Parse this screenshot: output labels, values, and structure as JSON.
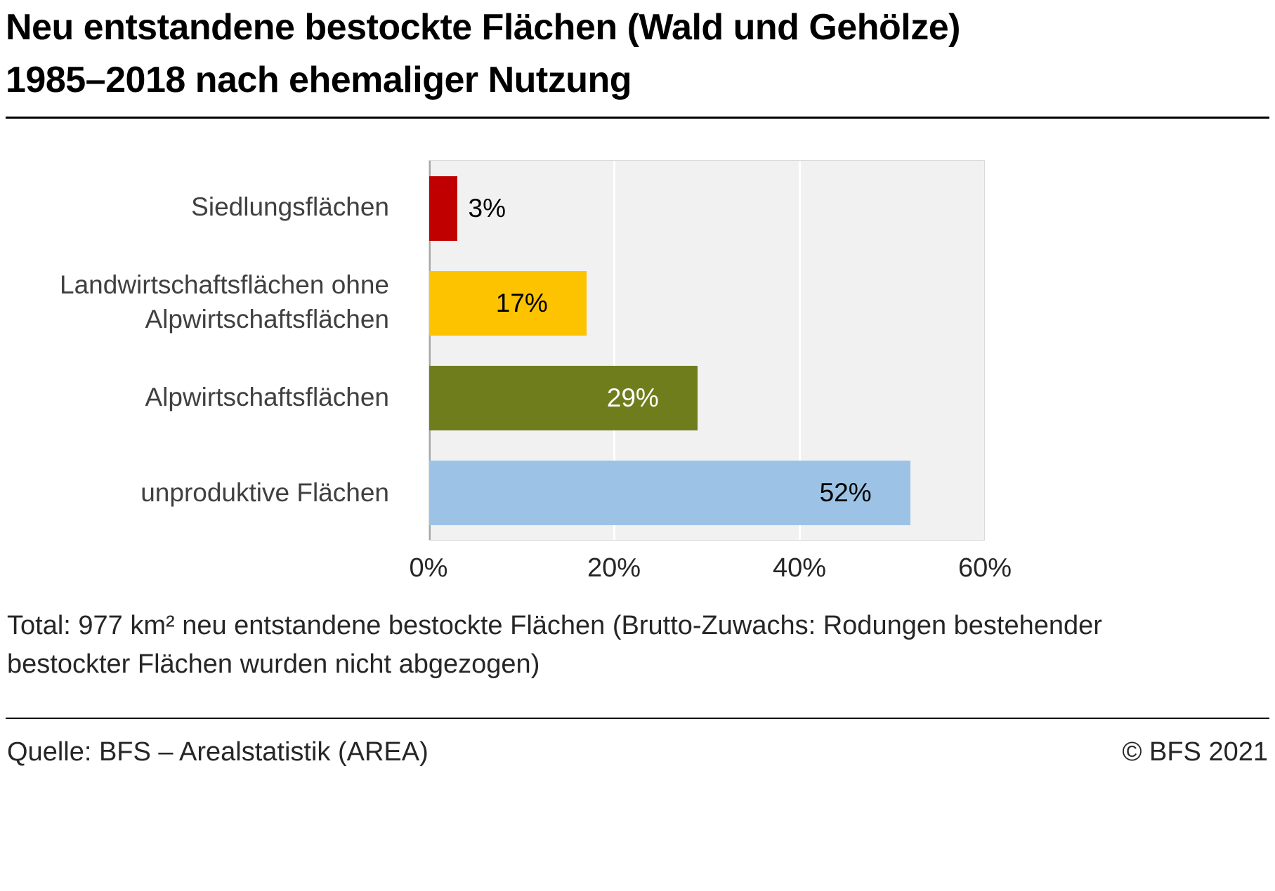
{
  "title": "Neu entstandene bestockte Flächen (Wald und Gehölze) 1985–2018 nach ehemaliger Nutzung",
  "chart_data": {
    "type": "bar",
    "orientation": "horizontal",
    "title": "Neu entstandene bestockte Flächen (Wald und Gehölze) 1985–2018 nach ehemaliger Nutzung",
    "categories": [
      "Siedlungsflächen",
      "Landwirtschaftsflächen ohne Alpwirtschaftsflächen",
      "Alpwirtschaftsflächen",
      "unproduktive Flächen"
    ],
    "values": [
      3,
      17,
      29,
      52
    ],
    "data_labels": [
      "3%",
      "17%",
      "29%",
      "52%"
    ],
    "unit": "%",
    "xlim": [
      0,
      60
    ],
    "xticks": [
      "0%",
      "20%",
      "40%",
      "60%"
    ],
    "xtick_values": [
      0,
      20,
      40,
      60
    ],
    "gridlines": [
      20,
      40
    ],
    "grid": true,
    "legend": "none",
    "bar_colors": [
      "#c00000",
      "#fdc300",
      "#6f7d1c",
      "#9cc3e5"
    ],
    "label_colors": [
      "#000000",
      "#000000",
      "#ffffff",
      "#000000"
    ],
    "label_positions": [
      "outside",
      "inside",
      "inside",
      "inside"
    ],
    "plot_background": "#f1f1f1",
    "gridline_color": "#ffffff"
  },
  "note": "Total: 977 km² neu entstandene bestockte Flächen (Brutto-Zuwachs: Rodungen bestehender bestockter Flächen wurden nicht abgezogen)",
  "footer": {
    "source": "Quelle: BFS – Arealstatistik (AREA)",
    "copyright": "© BFS 2021"
  }
}
